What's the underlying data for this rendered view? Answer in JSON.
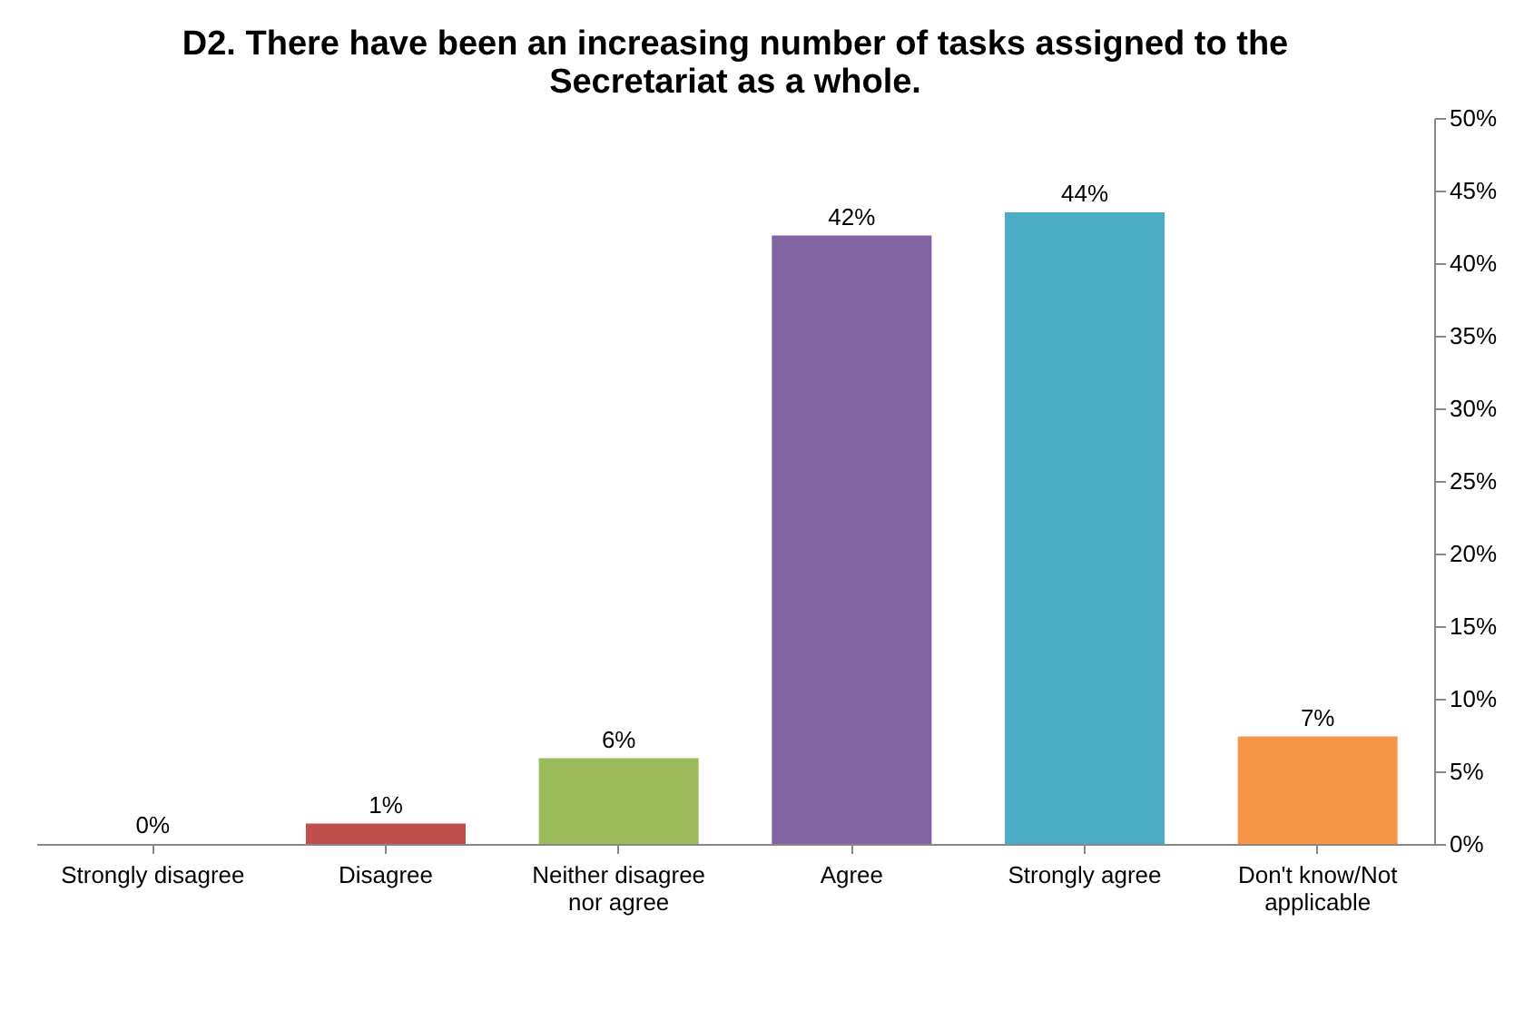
{
  "chart_data": {
    "type": "bar",
    "title": "D2. There have been an increasing number of tasks assigned to the Secretariat as a whole.",
    "categories": [
      "Strongly disagree",
      "Disagree",
      "Neither disagree nor agree",
      "Agree",
      "Strongly agree",
      "Don't know/Not applicable"
    ],
    "values": [
      0,
      1.4,
      5.9,
      41.9,
      43.5,
      7.4
    ],
    "value_labels": [
      "0%",
      "1%",
      "6%",
      "42%",
      "44%",
      "7%"
    ],
    "colors": [
      "#4f81bd",
      "#c0504d",
      "#9bbb59",
      "#8064a2",
      "#4bacc6",
      "#f79646"
    ],
    "ylim": [
      0,
      50
    ],
    "yticks": [
      {
        "value": 0,
        "label": "0%"
      },
      {
        "value": 5,
        "label": "5%"
      },
      {
        "value": 10,
        "label": "10%"
      },
      {
        "value": 15,
        "label": "15%"
      },
      {
        "value": 20,
        "label": "20%"
      },
      {
        "value": 25,
        "label": "25%"
      },
      {
        "value": 30,
        "label": "30%"
      },
      {
        "value": 35,
        "label": "35%"
      },
      {
        "value": 40,
        "label": "40%"
      },
      {
        "value": 45,
        "label": "45%"
      },
      {
        "value": 50,
        "label": "50%"
      }
    ],
    "grid": false,
    "legend": false
  }
}
